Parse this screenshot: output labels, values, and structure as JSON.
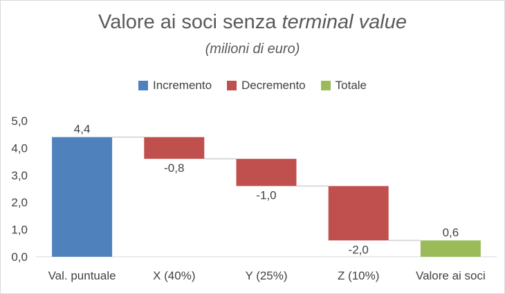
{
  "chart_data": {
    "type": "bar",
    "subtype": "waterfall",
    "title_main": "Valore ai soci senza ",
    "title_italic": "terminal value",
    "subtitle": "(milioni di euro)",
    "xlabel": "",
    "ylabel": "",
    "ylim": [
      0,
      5
    ],
    "yticks": [
      "0,0",
      "1,0",
      "2,0",
      "3,0",
      "4,0",
      "5,0"
    ],
    "ytick_values": [
      0,
      1,
      2,
      3,
      4,
      5
    ],
    "grid": false,
    "legend_position": "top",
    "legend": [
      {
        "name": "Incremento",
        "color": "#4f81bd"
      },
      {
        "name": "Decremento",
        "color": "#c0504d"
      },
      {
        "name": "Totale",
        "color": "#9bbb59"
      }
    ],
    "categories": [
      "Val. puntuale",
      "X (40%)",
      "Y (25%)",
      "Z (10%)",
      "Valore ai soci"
    ],
    "bars": [
      {
        "kind": "Incremento",
        "start": 0,
        "end": 4.4,
        "label": "4,4"
      },
      {
        "kind": "Decremento",
        "start": 4.4,
        "end": 3.6,
        "label": "-0,8"
      },
      {
        "kind": "Decremento",
        "start": 3.6,
        "end": 2.6,
        "label": "-1,0"
      },
      {
        "kind": "Decremento",
        "start": 2.6,
        "end": 0.6,
        "label": "-2,0"
      },
      {
        "kind": "Totale",
        "start": 0,
        "end": 0.6,
        "label": "0,6"
      }
    ]
  }
}
